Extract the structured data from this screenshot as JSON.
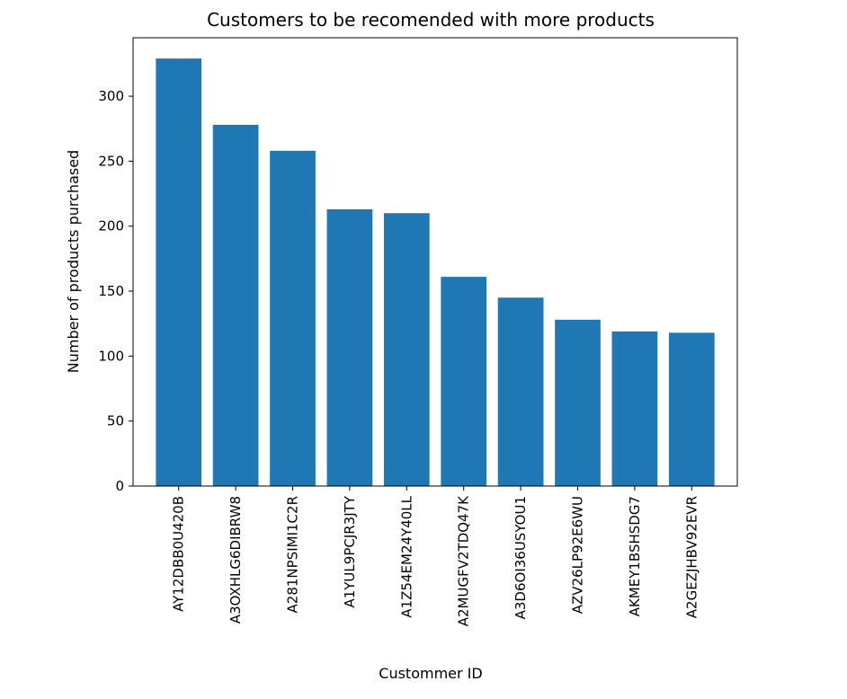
{
  "chart_data": {
    "type": "bar",
    "title": "Customers to be recomended with more products",
    "xlabel": "Custommer ID",
    "ylabel": "Number of products purchased",
    "categories": [
      "AY12DBB0U420B",
      "A3OXHLG6DIBRW8",
      "A281NPSIMI1C2R",
      "A1YUL9PCJR3JTY",
      "A1Z54EM24Y40LL",
      "A2MUGFV2TDQ47K",
      "A3D6OI36USYOU1",
      "AZV26LP92E6WU",
      "AKMEY1BSHSDG7",
      "A2GEZJHBV92EVR"
    ],
    "values": [
      329,
      278,
      258,
      213,
      210,
      161,
      145,
      128,
      119,
      118
    ],
    "ylim": [
      0,
      345
    ],
    "yticks": [
      0,
      50,
      100,
      150,
      200,
      250,
      300
    ],
    "grid": false,
    "legend": "none",
    "colors": {
      "bar": "#1f77b4",
      "axes": "#000000",
      "background": "#ffffff"
    }
  }
}
